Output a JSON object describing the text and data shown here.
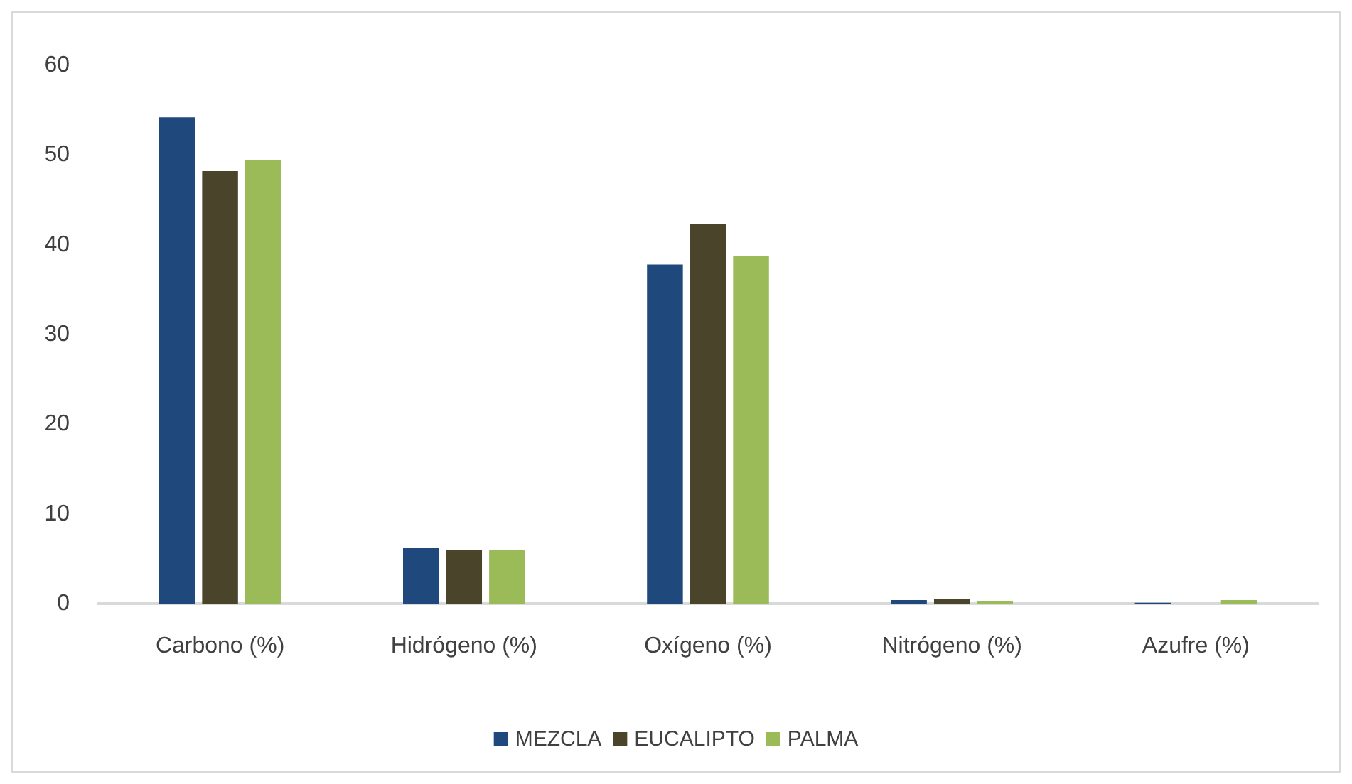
{
  "chart_data": {
    "type": "bar",
    "categories": [
      "Carbono (%)",
      "Hidrógeno (%)",
      "Oxígeno (%)",
      "Nitrógeno (%)",
      "Azufre (%)"
    ],
    "series": [
      {
        "name": "MEZCLA",
        "color": "#1f497d",
        "values": [
          54.2,
          6.2,
          37.8,
          0.4,
          0.1
        ]
      },
      {
        "name": "EUCALIPTO",
        "color": "#4a452a",
        "values": [
          48.2,
          6.0,
          42.3,
          0.5,
          0
        ]
      },
      {
        "name": "PALMA",
        "color": "#9bbb59",
        "values": [
          49.4,
          6.0,
          38.7,
          0.3,
          0.4
        ]
      }
    ],
    "ylim": [
      0,
      60
    ],
    "yticks": [
      0,
      10,
      20,
      30,
      40,
      50,
      60
    ],
    "grid": false,
    "legend": "bottom"
  }
}
